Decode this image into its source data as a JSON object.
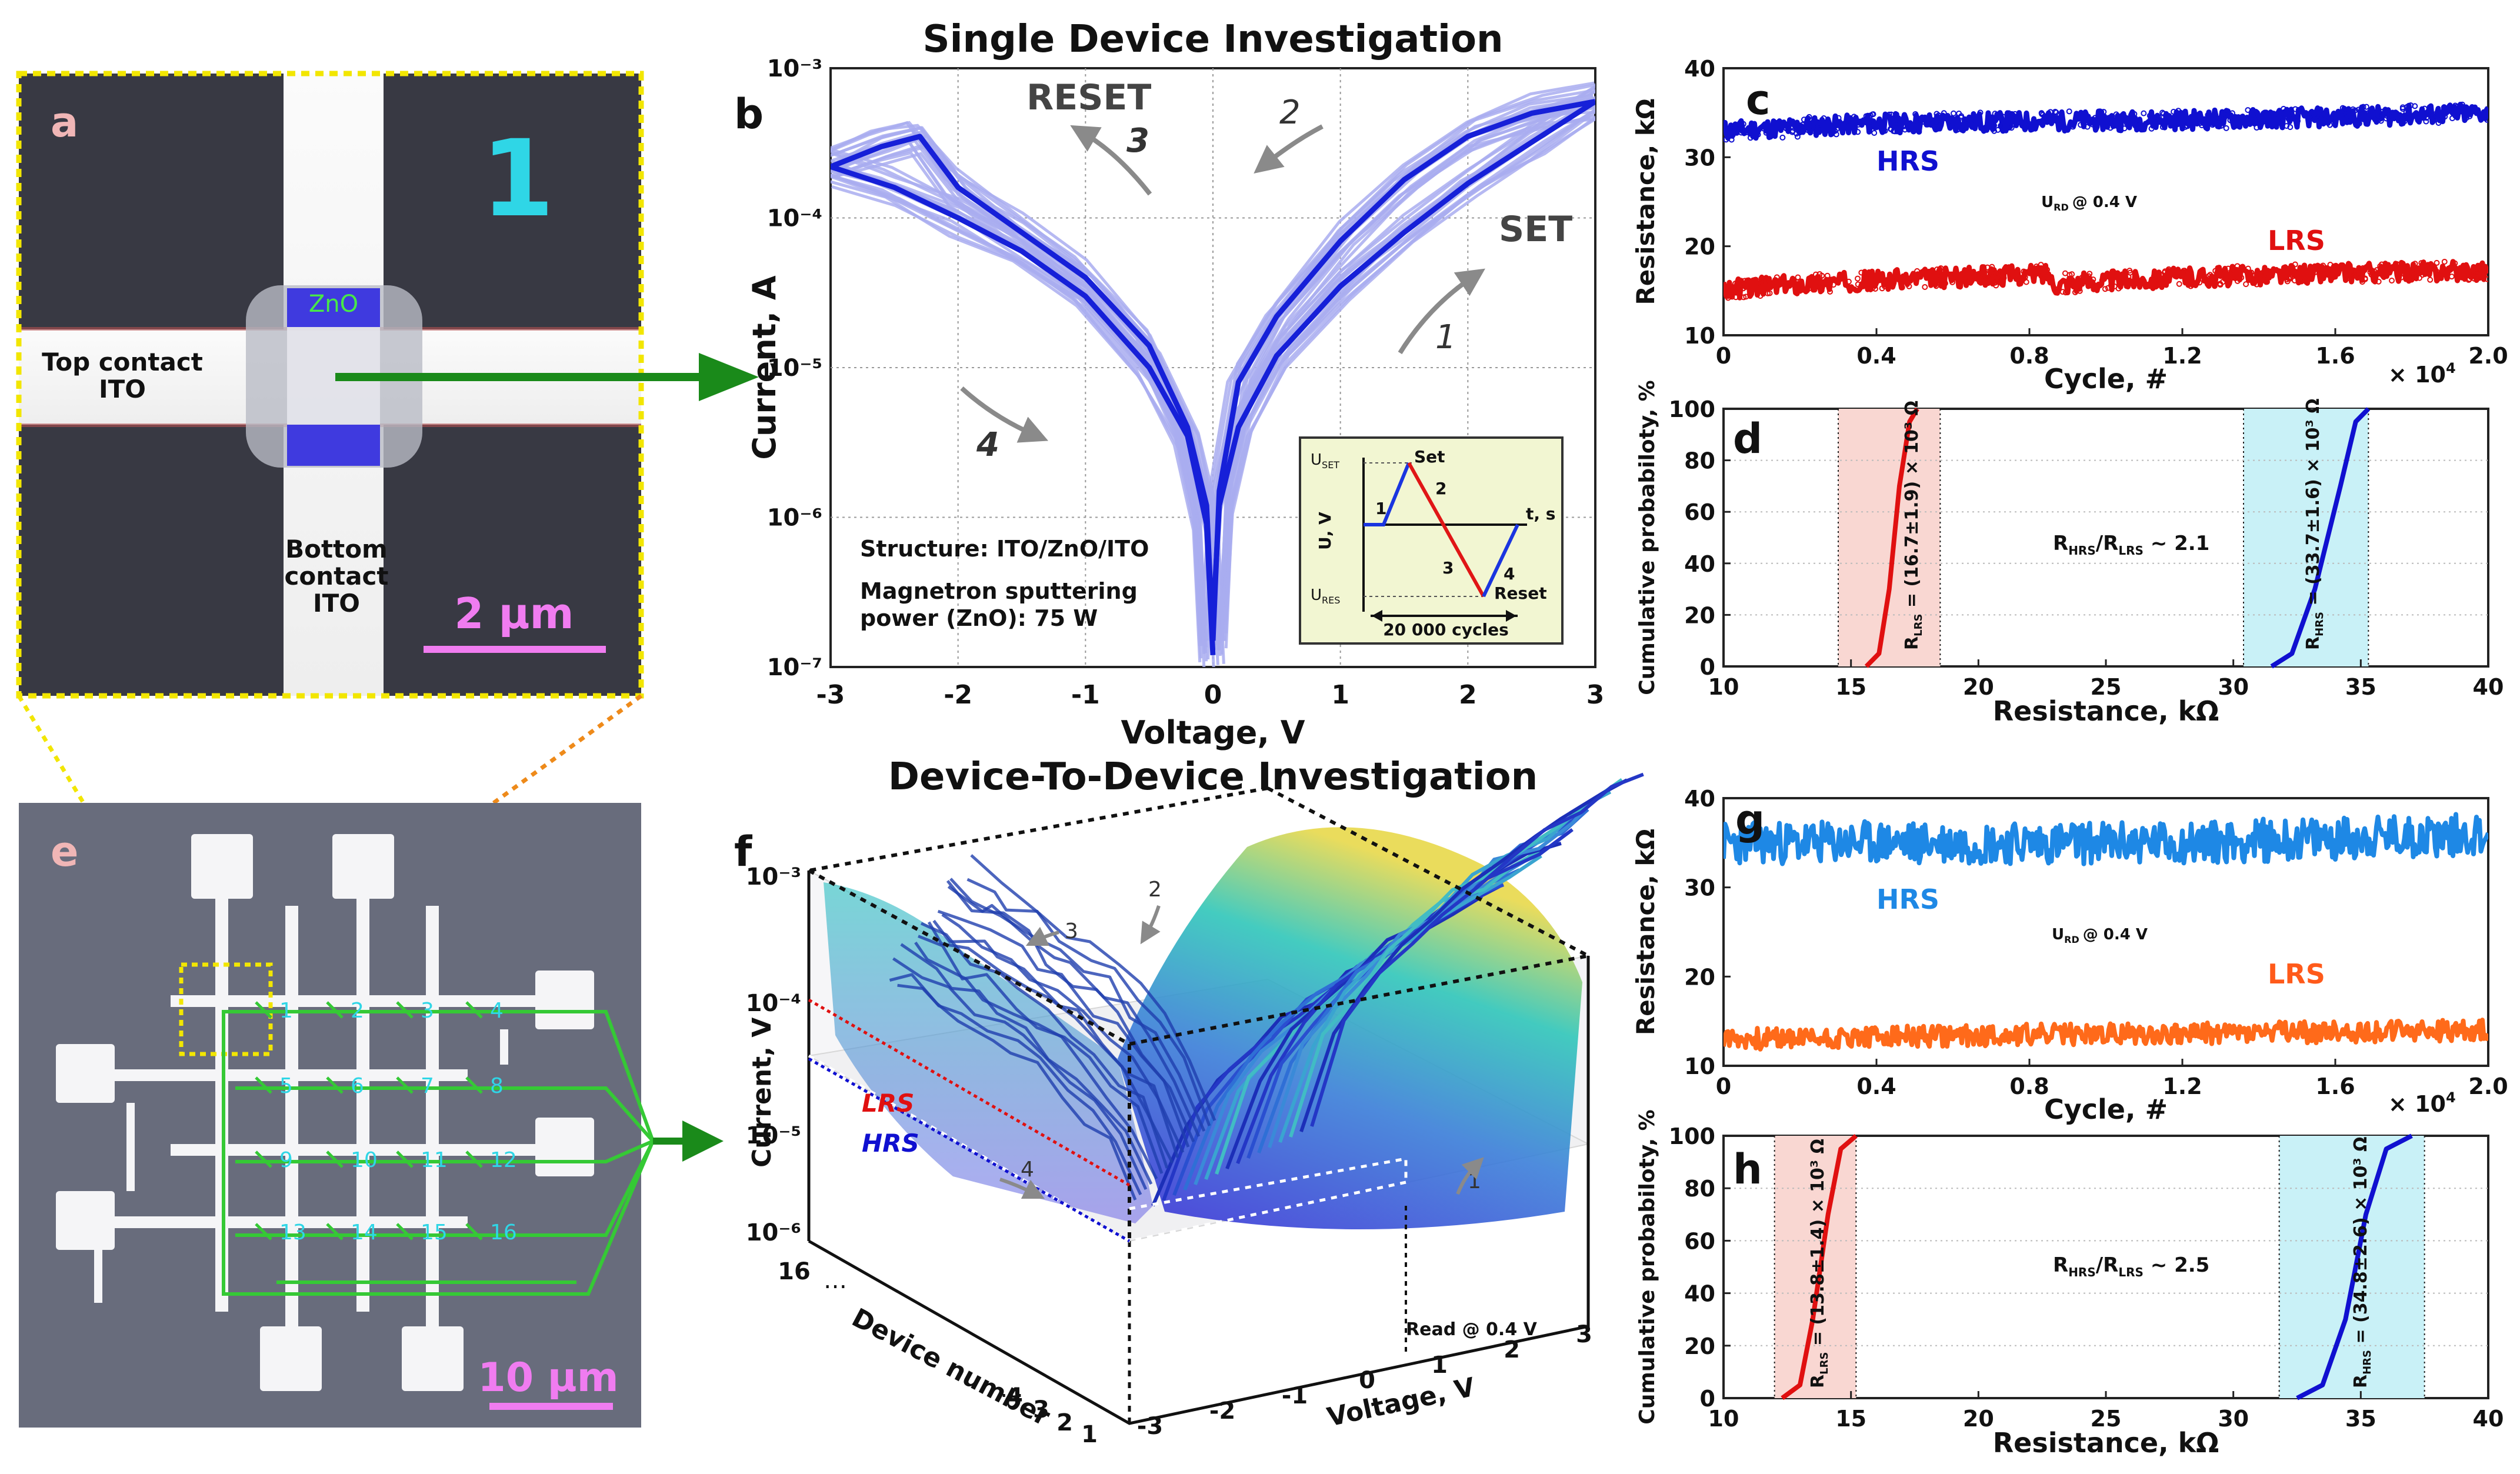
{
  "titles": {
    "single": "Single Device Investigation",
    "d2d": "Device-To-Device Investigation"
  },
  "panel_labels": {
    "a": "a",
    "b": "b",
    "c": "c",
    "d": "d",
    "e": "e",
    "f": "f",
    "g": "g",
    "h": "h"
  },
  "panel_a": {
    "device_number": "1",
    "zno": "ZnO",
    "top1": "Top contact",
    "top2": "ITO",
    "bottom1": "Bottom",
    "bottom2": "contact",
    "bottom3": "ITO",
    "scale": "2 µm"
  },
  "panel_e": {
    "scale": "10 µm",
    "device_ids": [
      "1",
      "2",
      "3",
      "4",
      "5",
      "6",
      "7",
      "8",
      "9",
      "10",
      "11",
      "12",
      "13",
      "14",
      "15",
      "16"
    ]
  },
  "panel_b": {
    "reset": "RESET",
    "set": "SET",
    "arrow_labels": [
      "1",
      "2",
      "3",
      "4"
    ],
    "structure": "Structure: ITO/ZnO/ITO",
    "sputter1": "Magnetron sputtering",
    "sputter2": "power (ZnO): 75 W",
    "inset": {
      "uset": "U",
      "uset_sub": "SET",
      "ures": "U",
      "ures_sub": "RES",
      "uv": "U, V",
      "ts": "t, s",
      "set": "Set",
      "reset": "Reset",
      "cycles": "20 000 cycles",
      "n1": "1",
      "n2": "2",
      "n3": "3",
      "n4": "4"
    }
  },
  "panel_c": {
    "hrs": "HRS",
    "lrs": "LRS",
    "read": "U",
    "read_sub": "RD",
    "read_val": "@ 0.4 V",
    "multiplier": "× 10",
    "multiplier_exp": "4"
  },
  "panel_d": {
    "ratio": "R",
    "ratio_sub1": "HRS",
    "ratio_mid": "/R",
    "ratio_sub2": "LRS",
    "ratio_val": " ~ 2.1",
    "lrs_text": "R",
    "lrs_sub": "LRS",
    "lrs_val": " = (16.7±1.9) × 10³ Ω",
    "hrs_text": "R",
    "hrs_sub": "HRS",
    "hrs_val": " = (33.7±1.6) × 10³ Ω"
  },
  "panel_f": {
    "lrs": "LRS",
    "hrs": "HRS",
    "arrows": [
      "1",
      "2",
      "3",
      "4"
    ],
    "read": "Read @ 0.4 V",
    "ylabel": "Current, V",
    "xlabel": "Voltage, V",
    "dlabel": "Device number",
    "z_ticks": [
      "10⁻³",
      "10⁻⁴",
      "10⁻⁵",
      "10⁻⁶"
    ],
    "v_ticks": [
      "-3",
      "-2",
      "-1",
      "0",
      "1",
      "2",
      "3"
    ],
    "d_ticks": [
      "16",
      "4",
      "3",
      "2",
      "1"
    ],
    "dots": "…"
  },
  "panel_g": {
    "hrs": "HRS",
    "lrs": "LRS",
    "read": "U",
    "read_sub": "RD",
    "read_val": "@ 0.4 V",
    "multiplier": "× 10",
    "multiplier_exp": "4"
  },
  "panel_h": {
    "ratio": "R",
    "ratio_sub1": "HRS",
    "ratio_mid": "/R",
    "ratio_sub2": "LRS",
    "ratio_val": " ~ 2.5",
    "lrs_text": "R",
    "lrs_sub": "LRS",
    "lrs_val": " = (13.8±1.4) × 10³ Ω",
    "hrs_text": "R",
    "hrs_sub": "HRS",
    "hrs_val": " = (34.8±2.6) × 10³ Ω"
  },
  "colors": {
    "hrs_blue": "#1010d0",
    "lrs_red": "#e01010",
    "g_hrs": "#1e88e5",
    "g_lrs": "#ff6a1a",
    "green": "#1a8a1a",
    "yellow": "#f2e600",
    "orange": "#ee8a1a",
    "cyan": "#2fd6e6",
    "pink": "#f07cf0",
    "iv_light": "#a9adf0",
    "iv_dark": "#1620d8"
  },
  "chart_data": [
    {
      "id": "b",
      "type": "line",
      "title": "Single Device Investigation",
      "xlabel": "Voltage, V",
      "ylabel": "Current, A",
      "xlim": [
        -3,
        3
      ],
      "ylim": [
        1e-07,
        0.001
      ],
      "yscale": "log",
      "xticks": [
        -3,
        -2,
        -1,
        0,
        1,
        2,
        3
      ],
      "yticks": [
        1e-07,
        1e-06,
        1e-05,
        0.0001,
        0.001
      ],
      "ytick_labels": [
        "10⁻⁷",
        "10⁻⁶",
        "10⁻⁵",
        "10⁻⁴",
        "10⁻³"
      ],
      "series": [
        {
          "name": "SET branch (median)",
          "x": [
            0,
            0.05,
            0.2,
            0.5,
            1,
            1.5,
            2,
            2.5,
            3
          ],
          "y": [
            2e-07,
            1.2e-06,
            4e-06,
            1.2e-05,
            3.5e-05,
            8e-05,
            0.00017,
            0.00032,
            0.0006
          ]
        },
        {
          "name": "RESET branch (median)",
          "x": [
            3,
            2.5,
            2,
            1.5,
            1,
            0.5,
            0.2,
            0.05,
            0
          ],
          "y": [
            0.0006,
            0.0005,
            0.00035,
            0.00018,
            7e-05,
            2.2e-05,
            8e-06,
            1.5e-06,
            1.5e-07
          ]
        },
        {
          "name": "Negative branch 3 (median)",
          "x": [
            0,
            -0.05,
            -0.2,
            -0.5,
            -1,
            -1.5,
            -2,
            -2.3,
            -2.6,
            -3
          ],
          "y": [
            1.5e-07,
            1.2e-06,
            4e-06,
            1.4e-05,
            4e-05,
            8e-05,
            0.00016,
            0.00035,
            0.0003,
            0.00022
          ]
        },
        {
          "name": "Negative branch 4 (median)",
          "x": [
            -3,
            -2.5,
            -2,
            -1.5,
            -1,
            -0.5,
            -0.2,
            -0.05,
            0
          ],
          "y": [
            0.00022,
            0.00016,
            0.0001,
            6e-05,
            3e-05,
            1e-05,
            3.5e-06,
            9e-07,
            1.2e-07
          ]
        }
      ],
      "annotations": [
        "RESET",
        "SET",
        "1",
        "2",
        "3",
        "4",
        "Structure: ITO/ZnO/ITO",
        "Magnetron sputtering power (ZnO): 75 W"
      ]
    },
    {
      "id": "c",
      "type": "scatter",
      "xlabel": "Cycle, #",
      "ylabel": "Resistance, kΩ",
      "xlim": [
        0,
        2.0
      ],
      "x_multiplier": "× 10⁴",
      "ylim": [
        10,
        40
      ],
      "xticks": [
        0,
        0.4,
        0.8,
        1.2,
        1.6,
        2.0
      ],
      "xtick_labels": [
        "0",
        "0.4",
        "0.8",
        "1.2",
        "1.6",
        "2.0"
      ],
      "yticks": [
        10,
        20,
        30,
        40
      ],
      "series": [
        {
          "name": "HRS",
          "x": [
            0,
            0.4,
            0.8,
            1.2,
            1.6,
            2.0
          ],
          "y": [
            33,
            33.8,
            34,
            34.2,
            34.5,
            35
          ]
        },
        {
          "name": "LRS",
          "x": [
            0,
            0.4,
            0.8,
            0.85,
            0.86,
            1.2,
            1.6,
            2.0
          ],
          "y": [
            15.2,
            16.2,
            16.8,
            17,
            15.8,
            16.5,
            17,
            17.3
          ]
        }
      ]
    },
    {
      "id": "d",
      "type": "line",
      "xlabel": "Resistance, kΩ",
      "ylabel": "Cumulative probabiloty, %",
      "xlim": [
        10,
        40
      ],
      "ylim": [
        0,
        100
      ],
      "xticks": [
        10,
        15,
        20,
        25,
        30,
        35,
        40
      ],
      "yticks": [
        0,
        20,
        40,
        60,
        80,
        100
      ],
      "series": [
        {
          "name": "LRS CDF",
          "x": [
            15.6,
            16.1,
            16.5,
            16.7,
            16.9,
            17.3,
            17.6
          ],
          "y": [
            0,
            5,
            30,
            50,
            70,
            95,
            100
          ]
        },
        {
          "name": "HRS CDF",
          "x": [
            31.5,
            32.3,
            33.2,
            33.7,
            34.2,
            34.8,
            35.3
          ],
          "y": [
            0,
            5,
            30,
            50,
            70,
            95,
            100
          ]
        }
      ],
      "bands": [
        {
          "name": "LRS",
          "range": [
            14.5,
            18.5
          ]
        },
        {
          "name": "HRS",
          "range": [
            30.4,
            35.3
          ]
        }
      ],
      "annotations": [
        "R_HRS/R_LRS ~ 2.1"
      ]
    },
    {
      "id": "f",
      "type": "surface",
      "title": "Device-To-Device Investigation",
      "xlabel": "Voltage, V",
      "ylabel": "Current, V",
      "zlabel": "Device number",
      "xlim": [
        -3,
        3
      ],
      "ylim": [
        1e-06,
        0.001
      ],
      "devices": 16,
      "annotations": [
        "LRS",
        "HRS",
        "Read @ 0.4 V",
        "1",
        "2",
        "3",
        "4"
      ]
    },
    {
      "id": "g",
      "type": "scatter",
      "xlabel": "Cycle, #",
      "ylabel": "Resistance, kΩ",
      "xlim": [
        0,
        2.0
      ],
      "x_multiplier": "× 10⁴",
      "ylim": [
        10,
        40
      ],
      "xticks": [
        0,
        0.4,
        0.8,
        1.2,
        1.6,
        2.0
      ],
      "xtick_labels": [
        "0",
        "0.4",
        "0.8",
        "1.2",
        "1.6",
        "2.0"
      ],
      "yticks": [
        10,
        20,
        30,
        40
      ],
      "series": [
        {
          "name": "HRS",
          "x": [
            0,
            0.4,
            0.8,
            1.2,
            1.6,
            2.0
          ],
          "y": [
            35,
            35,
            35,
            35,
            35.5,
            36
          ]
        },
        {
          "name": "LRS",
          "x": [
            0,
            0.4,
            0.8,
            1.2,
            1.6,
            2.0
          ],
          "y": [
            13,
            13.2,
            13.5,
            13.6,
            13.8,
            14
          ]
        }
      ]
    },
    {
      "id": "h",
      "type": "line",
      "xlabel": "Resistance, kΩ",
      "ylabel": "Cumulative probabiloty, %",
      "xlim": [
        10,
        40
      ],
      "ylim": [
        0,
        100
      ],
      "xticks": [
        10,
        15,
        20,
        25,
        30,
        35,
        40
      ],
      "yticks": [
        0,
        20,
        40,
        60,
        80,
        100
      ],
      "series": [
        {
          "name": "LRS CDF",
          "x": [
            12.3,
            13,
            13.5,
            13.8,
            14.1,
            14.6,
            15.2
          ],
          "y": [
            0,
            5,
            30,
            50,
            70,
            95,
            100
          ]
        },
        {
          "name": "HRS CDF",
          "x": [
            32.5,
            33.5,
            34.4,
            34.8,
            35.2,
            36,
            37
          ],
          "y": [
            0,
            5,
            30,
            50,
            70,
            95,
            100
          ]
        }
      ],
      "bands": [
        {
          "name": "LRS",
          "range": [
            12,
            15.2
          ]
        },
        {
          "name": "HRS",
          "range": [
            31.8,
            37.5
          ]
        }
      ],
      "annotations": [
        "R_HRS/R_LRS ~ 2.5"
      ]
    }
  ]
}
